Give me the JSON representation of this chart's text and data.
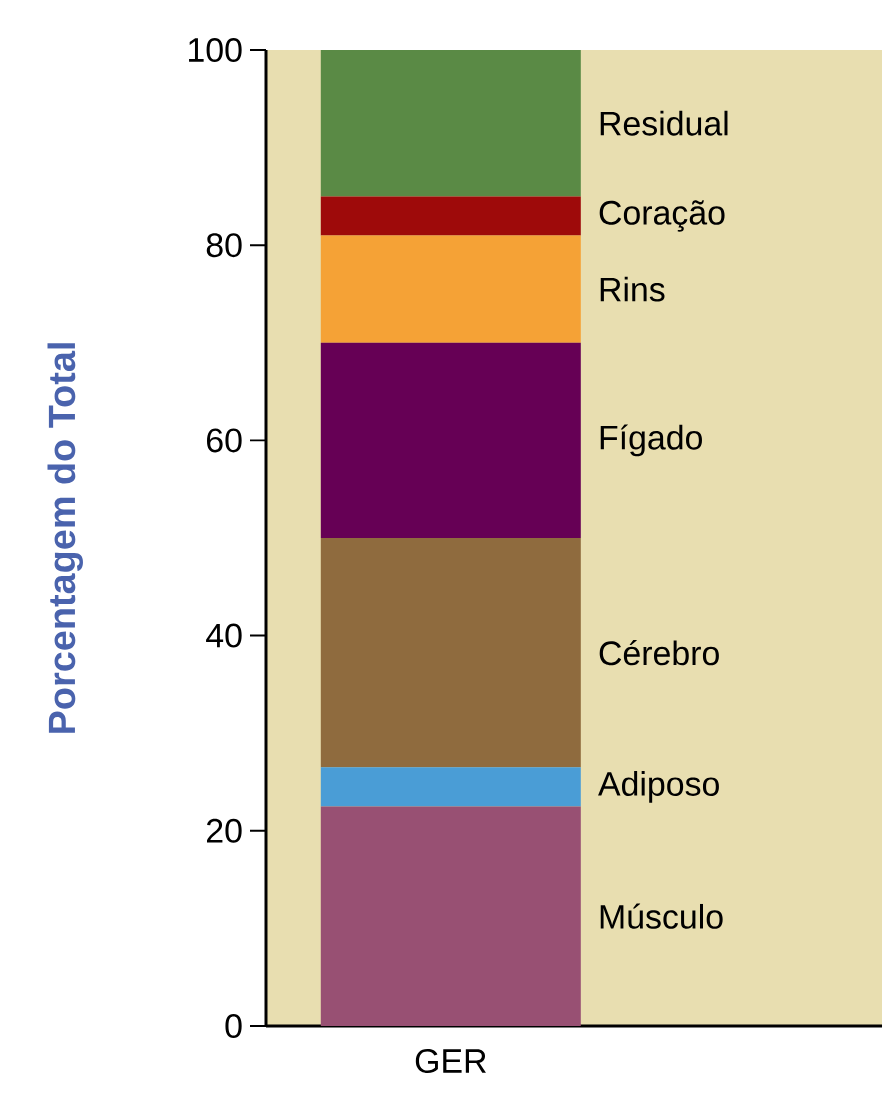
{
  "chart_data": {
    "type": "bar",
    "stacked": true,
    "ylabel": "Porcentagem do Total",
    "categories": [
      "GER"
    ],
    "ylim": [
      0,
      100
    ],
    "yticks": [
      0,
      20,
      40,
      60,
      80,
      100
    ],
    "series": [
      {
        "name": "Músculo",
        "color": "#985073",
        "values": [
          22.5
        ]
      },
      {
        "name": "Adiposo",
        "color": "#4a9dd6",
        "values": [
          4
        ]
      },
      {
        "name": "Cérebro",
        "color": "#8f6b3e",
        "values": [
          23.5
        ]
      },
      {
        "name": "Fígado",
        "color": "#660055",
        "values": [
          20
        ]
      },
      {
        "name": "Rins",
        "color": "#f5a236",
        "values": [
          11
        ]
      },
      {
        "name": "Coração",
        "color": "#9e0a0a",
        "values": [
          4
        ]
      },
      {
        "name": "Residual",
        "color": "#5a8a45",
        "values": [
          15
        ]
      }
    ]
  }
}
